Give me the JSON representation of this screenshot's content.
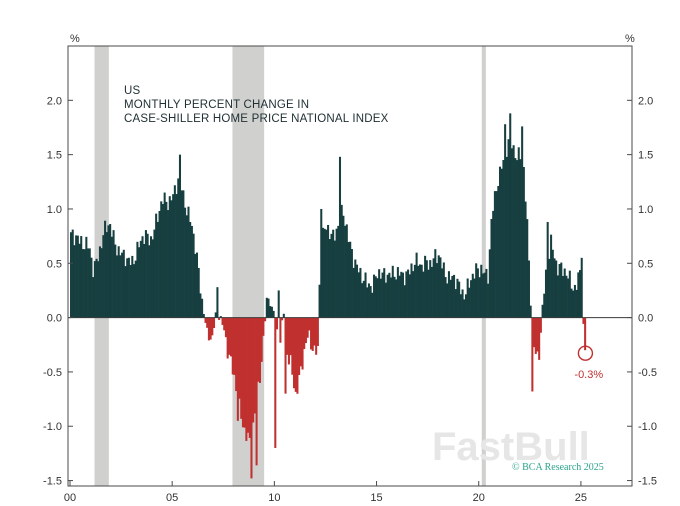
{
  "chart_data": {
    "type": "bar",
    "title_lines": [
      "US",
      "MONTHLY PERCENT CHANGE IN",
      "CASE-SHILLER HOME PRICE NATIONAL INDEX"
    ],
    "ylabel_left": "%",
    "ylabel_right": "%",
    "ylim": [
      -1.55,
      2.5
    ],
    "yticks": [
      2.0,
      1.5,
      1.0,
      0.5,
      0.0,
      -0.5,
      -1.0,
      -1.5
    ],
    "ytick_labels": [
      "2.0",
      "1.5",
      "1.0",
      "0.5",
      "0.0",
      "-0.5",
      "-1.0",
      "-1.5"
    ],
    "xlim": [
      2000.0,
      2027.5
    ],
    "xticks": [
      2000,
      2005,
      2010,
      2015,
      2020,
      2025
    ],
    "xtick_labels": [
      "00",
      "05",
      "10",
      "15",
      "20",
      "25"
    ],
    "recessions": [
      {
        "start": 2001.2,
        "end": 2001.9
      },
      {
        "start": 2007.95,
        "end": 2009.5
      },
      {
        "start": 2020.15,
        "end": 2020.35
      }
    ],
    "series": [
      {
        "name": "Monthly percent change",
        "x_start": 2000.0,
        "step": 0.0833,
        "knots": [
          [
            2000.0,
            0.72
          ],
          [
            2000.3,
            0.78
          ],
          [
            2000.6,
            0.68
          ],
          [
            2000.9,
            0.6
          ],
          [
            2001.1,
            0.45
          ],
          [
            2001.3,
            0.58
          ],
          [
            2001.6,
            0.75
          ],
          [
            2001.9,
            0.85
          ],
          [
            2002.2,
            0.7
          ],
          [
            2002.5,
            0.55
          ],
          [
            2002.8,
            0.5
          ],
          [
            2003.0,
            0.55
          ],
          [
            2003.3,
            0.65
          ],
          [
            2003.6,
            0.72
          ],
          [
            2003.9,
            0.75
          ],
          [
            2004.2,
            0.9
          ],
          [
            2004.5,
            1.05
          ],
          [
            2004.8,
            1.1
          ],
          [
            2005.0,
            1.15
          ],
          [
            2005.3,
            1.25
          ],
          [
            2005.6,
            1.05
          ],
          [
            2005.9,
            0.9
          ],
          [
            2006.1,
            0.6
          ],
          [
            2006.3,
            0.3
          ],
          [
            2006.5,
            0.05
          ],
          [
            2006.7,
            -0.15
          ],
          [
            2006.9,
            -0.2
          ],
          [
            2007.1,
            0.02
          ],
          [
            2007.3,
            0.0
          ],
          [
            2007.5,
            -0.1
          ],
          [
            2007.7,
            -0.3
          ],
          [
            2007.9,
            -0.5
          ],
          [
            2008.2,
            -0.8
          ],
          [
            2008.5,
            -1.0
          ],
          [
            2008.8,
            -1.2
          ],
          [
            2009.0,
            -0.9
          ],
          [
            2009.2,
            -0.6
          ],
          [
            2009.4,
            -0.2
          ],
          [
            2009.6,
            0.2
          ],
          [
            2009.8,
            0.1
          ],
          [
            2010.0,
            0.0
          ],
          [
            2010.2,
            -0.3
          ],
          [
            2010.4,
            0.1
          ],
          [
            2010.6,
            -0.4
          ],
          [
            2010.8,
            -0.5
          ],
          [
            2011.0,
            -0.7
          ],
          [
            2011.3,
            -0.4
          ],
          [
            2011.6,
            -0.2
          ],
          [
            2011.9,
            -0.3
          ],
          [
            2012.1,
            -0.25
          ],
          [
            2012.2,
            0.7
          ],
          [
            2012.5,
            0.8
          ],
          [
            2012.8,
            0.75
          ],
          [
            2013.0,
            0.85
          ],
          [
            2013.3,
            0.95
          ],
          [
            2013.6,
            0.7
          ],
          [
            2013.9,
            0.55
          ],
          [
            2014.2,
            0.35
          ],
          [
            2014.5,
            0.3
          ],
          [
            2014.8,
            0.35
          ],
          [
            2015.0,
            0.4
          ],
          [
            2015.3,
            0.35
          ],
          [
            2015.6,
            0.45
          ],
          [
            2015.9,
            0.4
          ],
          [
            2016.2,
            0.35
          ],
          [
            2016.5,
            0.45
          ],
          [
            2016.8,
            0.5
          ],
          [
            2017.1,
            0.45
          ],
          [
            2017.4,
            0.55
          ],
          [
            2017.7,
            0.5
          ],
          [
            2018.0,
            0.55
          ],
          [
            2018.3,
            0.45
          ],
          [
            2018.6,
            0.35
          ],
          [
            2018.9,
            0.3
          ],
          [
            2019.2,
            0.25
          ],
          [
            2019.5,
            0.3
          ],
          [
            2019.8,
            0.4
          ],
          [
            2020.1,
            0.5
          ],
          [
            2020.4,
            0.35
          ],
          [
            2020.6,
            0.9
          ],
          [
            2020.9,
            1.3
          ],
          [
            2021.2,
            1.5
          ],
          [
            2021.5,
            1.6
          ],
          [
            2021.8,
            1.5
          ],
          [
            2022.1,
            1.55
          ],
          [
            2022.3,
            0.9
          ],
          [
            2022.5,
            0.1
          ],
          [
            2022.6,
            -0.2
          ],
          [
            2022.8,
            -0.35
          ],
          [
            2022.95,
            -0.25
          ],
          [
            2023.05,
            0.05
          ],
          [
            2023.3,
            0.45
          ],
          [
            2023.5,
            0.7
          ],
          [
            2023.8,
            0.5
          ],
          [
            2024.1,
            0.4
          ],
          [
            2024.4,
            0.35
          ],
          [
            2024.7,
            0.3
          ],
          [
            2024.9,
            0.4
          ],
          [
            2025.0,
            0.45
          ],
          [
            2025.05,
            0.0
          ],
          [
            2025.17,
            -0.3
          ]
        ],
        "spikes": [
          [
            2005.3,
            1.5
          ],
          [
            2007.2,
            0.28
          ],
          [
            2008.2,
            -0.95
          ],
          [
            2008.8,
            -1.48
          ],
          [
            2009.05,
            -1.36
          ],
          [
            2009.85,
            0.1
          ],
          [
            2010.0,
            -1.2
          ],
          [
            2010.2,
            0.25
          ],
          [
            2010.5,
            -0.7
          ],
          [
            2012.25,
            1.0
          ],
          [
            2013.2,
            1.48
          ],
          [
            2021.2,
            1.78
          ],
          [
            2021.5,
            1.88
          ],
          [
            2022.05,
            1.76
          ],
          [
            2022.55,
            -0.68
          ],
          [
            2023.3,
            0.88
          ],
          [
            2025.0,
            0.55
          ]
        ]
      }
    ],
    "annotation": {
      "text": "-0.3%",
      "x": 2025.17,
      "y": -0.3
    }
  },
  "colors": {
    "positive": "#173f40",
    "negative": "#c0302f",
    "recession": "#d0d0cf",
    "axis": "#4a4a4a"
  },
  "watermark": "FastBull",
  "credit": "© BCA Research 2025"
}
